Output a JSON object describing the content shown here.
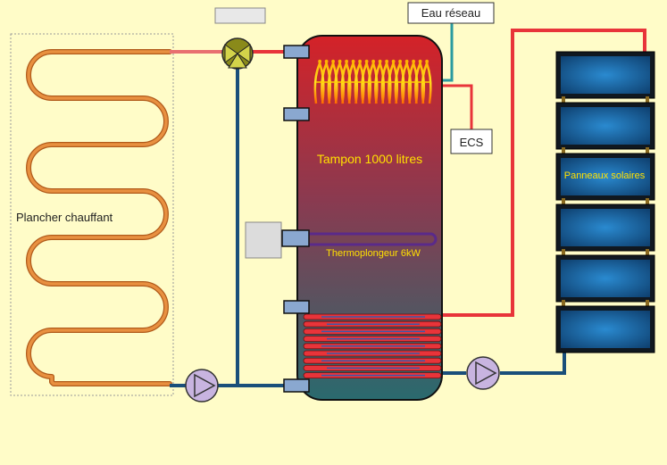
{
  "labels": {
    "floor_heating": "Plancher chauffant",
    "tank": "Tampon 1000 litres",
    "immersion_heater": "Thermoplongeur 6kW",
    "solar_panels": "Panneaux solaires",
    "mains_water": "Eau réseau",
    "dhw": "ECS"
  },
  "colors": {
    "background": "#fffcc8",
    "hot_pipe": "#e8343a",
    "cold_pipe": "#1a4f7a",
    "floor_pipe": "#d9803a",
    "mains_pipe": "#2a9aa0",
    "pump": "#c8b4e0",
    "valve": "#8a8a1a",
    "label_yellow": "#ffe000",
    "panel": "#1a6aa8"
  },
  "components": {
    "pump_count": 2,
    "solar_panel_count": 6,
    "valve_type": "three-way"
  }
}
